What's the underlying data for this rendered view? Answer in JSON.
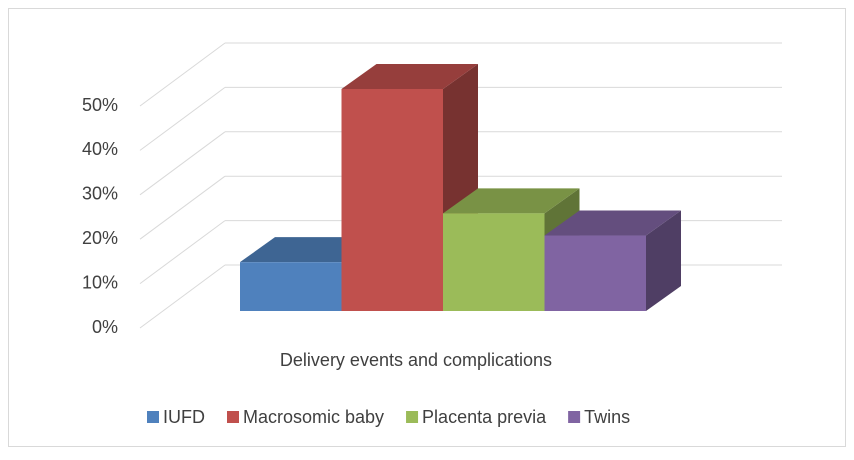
{
  "chart_data": {
    "type": "bar3d",
    "categories": [
      "Delivery events and complications"
    ],
    "series": [
      {
        "name": "IUFD",
        "color": "#4f81bd",
        "values": [
          11
        ]
      },
      {
        "name": "Macrosomic baby",
        "color": "#c0504d",
        "values": [
          50
        ]
      },
      {
        "name": "Placenta previa",
        "color": "#9bbb59",
        "values": [
          22
        ]
      },
      {
        "name": "Twins",
        "color": "#8064a2",
        "values": [
          17
        ]
      }
    ],
    "ylim": [
      0,
      50
    ],
    "yticks": [
      {
        "value": 0,
        "label": "0%"
      },
      {
        "value": 10,
        "label": "10%"
      },
      {
        "value": 20,
        "label": "20%"
      },
      {
        "value": 30,
        "label": "30%"
      },
      {
        "value": 40,
        "label": "40%"
      },
      {
        "value": 50,
        "label": "50%"
      }
    ],
    "grid": true,
    "legend": "bottom"
  }
}
